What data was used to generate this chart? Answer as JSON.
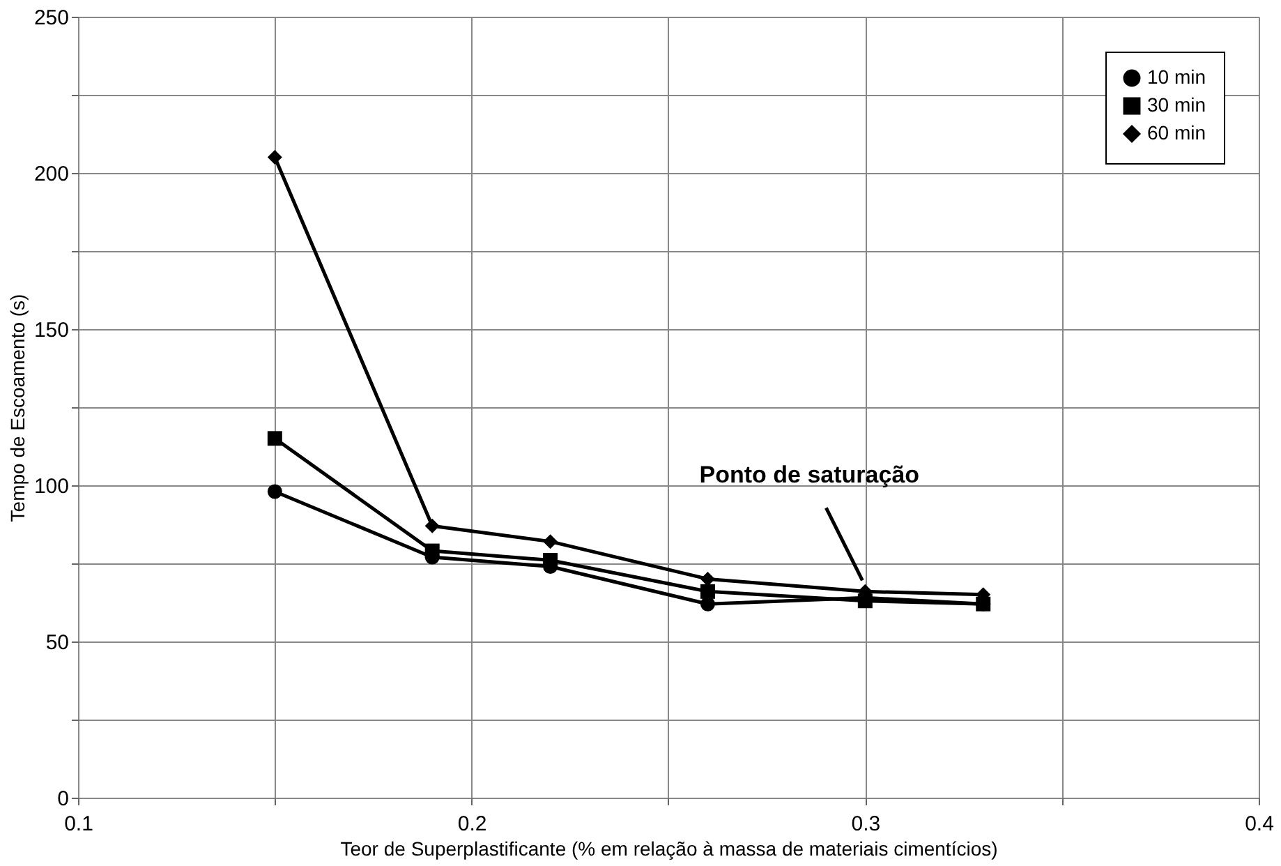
{
  "chart_data": {
    "type": "line",
    "xlabel": "Teor de Superplastificante (% em relação à massa de materiais cimentícios)",
    "ylabel": "Tempo de Escoamento (s)",
    "x": [
      0.15,
      0.19,
      0.22,
      0.26,
      0.3,
      0.33
    ],
    "series": [
      {
        "name": "10 min",
        "color": "#000000",
        "marker": "circle",
        "values": [
          98,
          77,
          74,
          62,
          64,
          62
        ]
      },
      {
        "name": "30 min",
        "color": "#000000",
        "marker": "square",
        "values": [
          115,
          79,
          76,
          66,
          63,
          62
        ]
      },
      {
        "name": "60 min",
        "color": "#000000",
        "marker": "diamond",
        "values": [
          205,
          87,
          82,
          70,
          66,
          65
        ]
      }
    ],
    "xlim": [
      0.1,
      0.4
    ],
    "xticks": [
      0.1,
      {
        "value": 0.15,
        "label": null
      },
      0.2,
      {
        "value": 0.25,
        "label": null
      },
      0.3,
      {
        "value": 0.35,
        "label": null
      },
      0.4
    ],
    "ylim": [
      0,
      250
    ],
    "yticks": [
      0,
      {
        "value": 25,
        "label": null
      },
      50,
      {
        "value": 75,
        "label": null
      },
      100,
      {
        "value": 125,
        "label": null
      },
      150,
      {
        "value": 175,
        "label": null
      },
      200,
      {
        "value": 225,
        "label": null
      },
      250
    ],
    "grid": true,
    "legend": "top right",
    "line_style": "solid",
    "annotations": [
      {
        "text": "Ponto de saturação",
        "x": 0.3,
        "y": 66
      }
    ]
  }
}
